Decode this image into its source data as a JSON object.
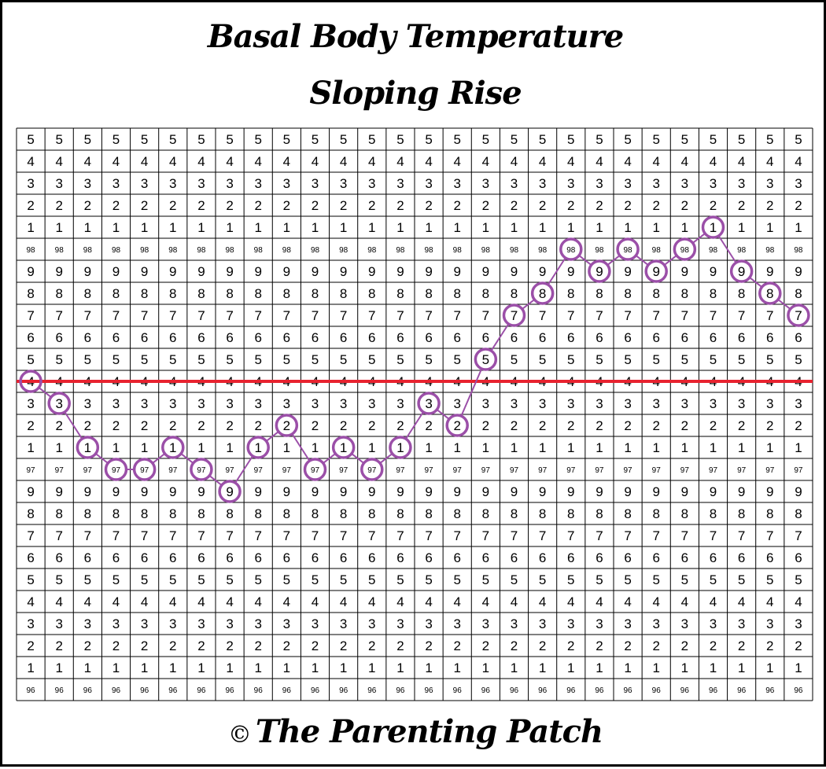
{
  "title": "Basal Body Temperature",
  "subtitle": "Sloping Rise",
  "footer": {
    "copyright_symbol": "©",
    "brand": "The Parenting Patch"
  },
  "colors": {
    "marker": "#9b4fa8",
    "coverline": "#e8222f",
    "grid": "#000000"
  },
  "chart_data": {
    "type": "line",
    "title": "Basal Body Temperature",
    "subtitle": "Sloping Rise",
    "y_rows": [
      {
        "label": "5",
        "value": 98.5
      },
      {
        "label": "4",
        "value": 98.4
      },
      {
        "label": "3",
        "value": 98.3
      },
      {
        "label": "2",
        "value": 98.2
      },
      {
        "label": "1",
        "value": 98.1
      },
      {
        "label": "98",
        "value": 98.0
      },
      {
        "label": "9",
        "value": 97.9
      },
      {
        "label": "8",
        "value": 97.8
      },
      {
        "label": "7",
        "value": 97.7
      },
      {
        "label": "6",
        "value": 97.6
      },
      {
        "label": "5",
        "value": 97.5
      },
      {
        "label": "4",
        "value": 97.4
      },
      {
        "label": "3",
        "value": 97.3
      },
      {
        "label": "2",
        "value": 97.2
      },
      {
        "label": "1",
        "value": 97.1
      },
      {
        "label": "97",
        "value": 97.0
      },
      {
        "label": "9",
        "value": 96.9
      },
      {
        "label": "8",
        "value": 96.8
      },
      {
        "label": "7",
        "value": 96.7
      },
      {
        "label": "6",
        "value": 96.6
      },
      {
        "label": "5",
        "value": 96.5
      },
      {
        "label": "4",
        "value": 96.4
      },
      {
        "label": "3",
        "value": 96.3
      },
      {
        "label": "2",
        "value": 96.2
      },
      {
        "label": "1",
        "value": 96.1
      },
      {
        "label": "96",
        "value": 96.0
      }
    ],
    "days": 28,
    "ylim": [
      96.0,
      98.5
    ],
    "values": [
      97.4,
      97.3,
      97.1,
      97.0,
      97.0,
      97.1,
      97.0,
      96.9,
      97.1,
      97.2,
      97.0,
      97.1,
      97.0,
      97.1,
      97.3,
      97.2,
      97.5,
      97.7,
      97.8,
      98.0,
      97.9,
      98.0,
      97.9,
      98.0,
      98.1,
      97.9,
      97.8,
      97.7
    ],
    "coverline": 97.4,
    "grid": true
  }
}
